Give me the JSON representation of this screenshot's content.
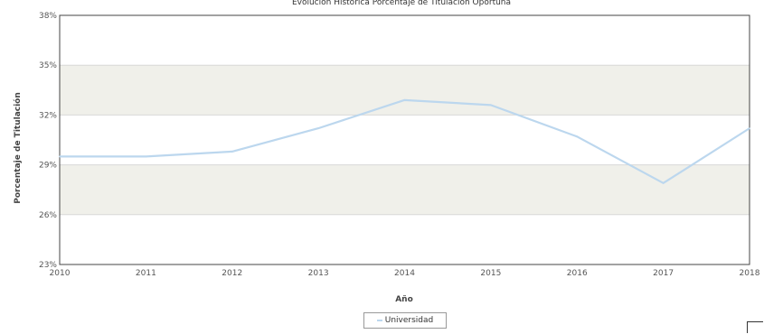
{
  "chart_data": {
    "type": "line",
    "title": "Evolución Histórica Porcentaje de Titulación Oportuna",
    "xlabel": "Año",
    "ylabel": "Porcentaje de Titulación",
    "categories": [
      "2010",
      "2011",
      "2012",
      "2013",
      "2014",
      "2015",
      "2016",
      "2017",
      "2018"
    ],
    "ylim": [
      23,
      38
    ],
    "yticks": [
      23,
      26,
      29,
      32,
      35,
      38
    ],
    "ytick_labels": [
      "23%",
      "26%",
      "29%",
      "32%",
      "35%",
      "38%"
    ],
    "series": [
      {
        "name": "Universidad",
        "values": [
          29.5,
          29.5,
          29.8,
          31.2,
          32.9,
          32.6,
          30.7,
          27.9,
          31.2
        ]
      }
    ],
    "grid": true,
    "legend_position": "bottom-center"
  },
  "colors": {
    "series_line": "#bcd7ee",
    "band_shade": "#f0f0ea",
    "grid_line": "#d8d8d8",
    "frame": "#444444"
  }
}
